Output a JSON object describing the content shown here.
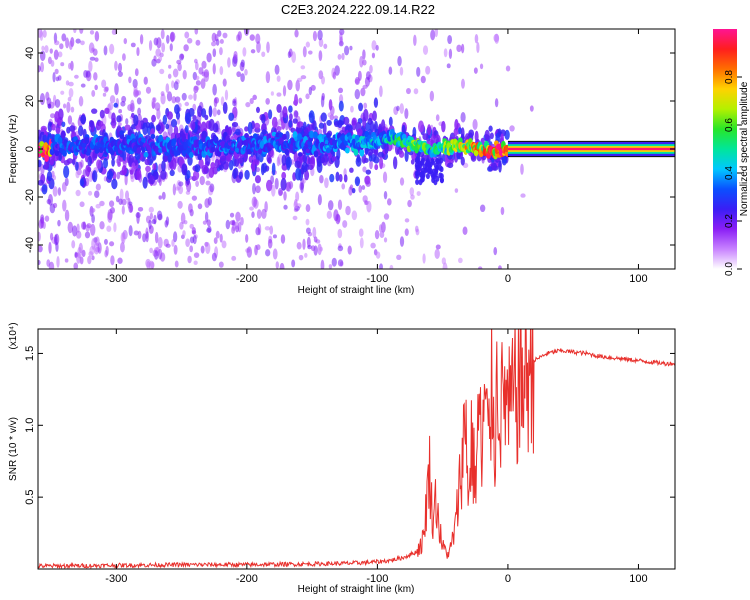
{
  "figure": {
    "title": "C2E3.2024.222.09.14.R22"
  },
  "colors": {
    "snr_line": "#e8302c",
    "axis": "#000000",
    "background": "#ffffff",
    "spectrum_faint": "#dcc2f7",
    "spectrum_strong": "#7a1ef0"
  },
  "chart_data": [
    {
      "type": "heatmap",
      "title": "C2E3.2024.222.09.14.R22",
      "xlabel": "Height of straight line (km)",
      "ylabel": "Frequency (Hz)",
      "xlim": [
        -360,
        128
      ],
      "ylim": [
        -50,
        50
      ],
      "x_ticks": [
        -300,
        -200,
        -100,
        0,
        100
      ],
      "x_tick_labels": [
        "-300",
        "-200",
        "-100",
        "0",
        "100"
      ],
      "y_ticks": [
        -40,
        -20,
        0,
        20,
        40
      ],
      "y_tick_labels": [
        "-40",
        "-20",
        "0",
        "20",
        "40"
      ],
      "colorbar": {
        "label": "Normalized spectral amplitude",
        "range": [
          0,
          1
        ],
        "ticks": [
          0.0,
          0.2,
          0.4,
          0.6,
          0.8
        ],
        "tick_labels": [
          "0.0",
          "0.2",
          "0.4",
          "0.6",
          "0.8"
        ],
        "stops": [
          "#ffffff",
          "#c882ff",
          "#8a1ef5",
          "#3a1ef5",
          "#0a50ff",
          "#00c8ff",
          "#00e69a",
          "#28e628",
          "#b4f000",
          "#ffd200",
          "#ff6e00",
          "#ff1e1e",
          "#ff1493"
        ]
      },
      "central_band": [
        {
          "x": -350,
          "f": 1,
          "amp": 0.32
        },
        {
          "x": -300,
          "f": 2,
          "amp": 0.33
        },
        {
          "x": -250,
          "f": 1,
          "amp": 0.34
        },
        {
          "x": -200,
          "f": 2,
          "amp": 0.34
        },
        {
          "x": -150,
          "f": 2,
          "amp": 0.36
        },
        {
          "x": -120,
          "f": 3,
          "amp": 0.4
        },
        {
          "x": -100,
          "f": 3,
          "amp": 0.45
        },
        {
          "x": -90,
          "f": 5,
          "amp": 0.5
        },
        {
          "x": -80,
          "f": 3,
          "amp": 0.55
        },
        {
          "x": -70,
          "f": 2,
          "amp": 0.6
        },
        {
          "x": -60,
          "f": -1,
          "amp": 0.55
        },
        {
          "x": -50,
          "f": 0,
          "amp": 0.6
        },
        {
          "x": -40,
          "f": 2,
          "amp": 0.7
        },
        {
          "x": -30,
          "f": 1,
          "amp": 0.75
        },
        {
          "x": -20,
          "f": 0,
          "amp": 0.85
        },
        {
          "x": -10,
          "f": -1,
          "amp": 0.85
        },
        {
          "x": 0,
          "f": 0,
          "amp": 0.95
        },
        {
          "x": 50,
          "f": 0,
          "amp": 0.97
        },
        {
          "x": 128,
          "f": 0,
          "amp": 0.97
        }
      ]
    },
    {
      "type": "line",
      "xlabel": "Height of straight line (km)",
      "ylabel": "SNR (10 * v/v)",
      "y_multiplier": "(x10⁴)",
      "xlim": [
        -360,
        128
      ],
      "ylim": [
        0,
        1.67
      ],
      "x_ticks": [
        -300,
        -200,
        -100,
        0,
        100
      ],
      "x_tick_labels": [
        "-300",
        "-200",
        "-100",
        "0",
        "100"
      ],
      "y_ticks": [
        0.5,
        1.0,
        1.5
      ],
      "y_tick_labels": [
        "0.5",
        "1.0",
        "1.5"
      ],
      "series": [
        {
          "color": "#e8302c",
          "x": [
            -360,
            -300,
            -250,
            -200,
            -150,
            -120,
            -100,
            -90,
            -80,
            -70,
            -65,
            -60,
            -58,
            -55,
            -52,
            -50,
            -45,
            -40,
            -35,
            -32,
            -30,
            -28,
            -25,
            -22,
            -20,
            -18,
            -15,
            -12,
            -10,
            -8,
            -5,
            -2,
            0,
            5,
            10,
            20,
            30,
            40,
            50,
            60,
            70,
            80,
            90,
            100,
            110,
            120,
            128
          ],
          "y": [
            0.02,
            0.025,
            0.03,
            0.03,
            0.035,
            0.04,
            0.05,
            0.06,
            0.08,
            0.12,
            0.2,
            0.7,
            0.35,
            0.5,
            0.25,
            0.15,
            0.1,
            0.3,
            0.8,
            1.05,
            0.45,
            0.9,
            0.6,
            1.15,
            0.7,
            1.2,
            0.85,
            1.3,
            0.9,
            1.35,
            1.1,
            1.25,
            1.05,
            1.2,
            1.3,
            1.45,
            1.5,
            1.52,
            1.51,
            1.5,
            1.48,
            1.47,
            1.46,
            1.45,
            1.44,
            1.43,
            1.43
          ]
        }
      ]
    }
  ]
}
